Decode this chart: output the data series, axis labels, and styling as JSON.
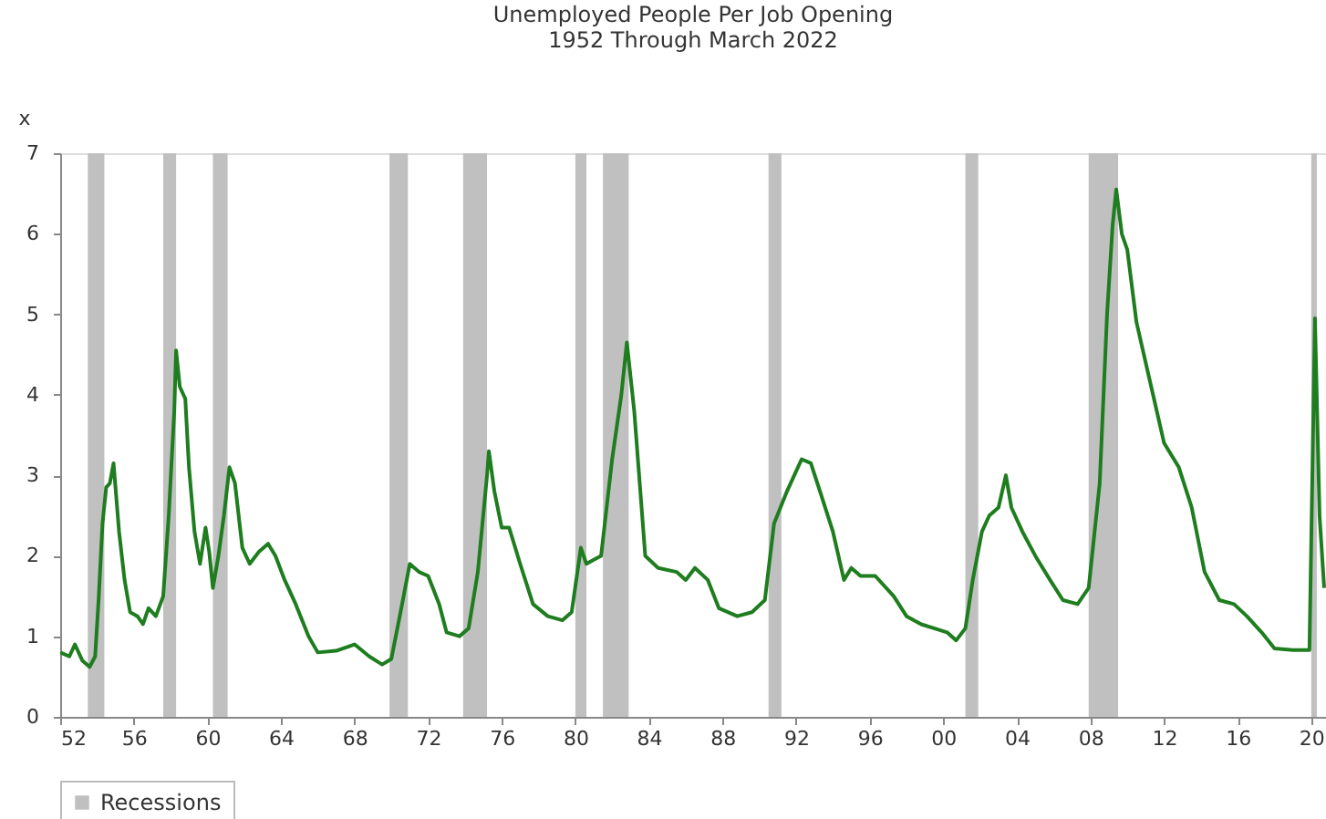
{
  "chart_data": {
    "type": "line",
    "title": [
      "Unemployed People Per Job Opening",
      "1952 Through March 2022"
    ],
    "ylabel": "x",
    "xlim": [
      1952,
      2020.8
    ],
    "xticks": [
      {
        "value": 1952,
        "label": "52"
      },
      {
        "value": 1956,
        "label": "56"
      },
      {
        "value": 1960,
        "label": "60"
      },
      {
        "value": 1964,
        "label": "64"
      },
      {
        "value": 1968,
        "label": "68"
      },
      {
        "value": 1972,
        "label": "72"
      },
      {
        "value": 1976,
        "label": "76"
      },
      {
        "value": 1980,
        "label": "80"
      },
      {
        "value": 1984,
        "label": "84"
      },
      {
        "value": 1988,
        "label": "88"
      },
      {
        "value": 1992,
        "label": "92"
      },
      {
        "value": 1996,
        "label": "96"
      },
      {
        "value": 2000,
        "label": "00"
      },
      {
        "value": 2004,
        "label": "04"
      },
      {
        "value": 2008,
        "label": "08"
      },
      {
        "value": 2012,
        "label": "12"
      },
      {
        "value": 2016,
        "label": "16"
      },
      {
        "value": 2020,
        "label": "20"
      }
    ],
    "ylim": [
      0,
      7
    ],
    "yticks": [
      0,
      1,
      2,
      3,
      4,
      5,
      6,
      7
    ],
    "grid": false,
    "legend": "bottom",
    "bands": [
      {
        "axis": "x",
        "from": 1953.5,
        "to": 1954.4,
        "label": "Recessions",
        "color": "#c0c0c0"
      },
      {
        "axis": "x",
        "from": 1957.6,
        "to": 1958.3,
        "color": "#c0c0c0"
      },
      {
        "axis": "x",
        "from": 1960.3,
        "to": 1961.1,
        "color": "#c0c0c0"
      },
      {
        "axis": "x",
        "from": 1969.9,
        "to": 1970.9,
        "color": "#c0c0c0"
      },
      {
        "axis": "x",
        "from": 1973.9,
        "to": 1975.2,
        "color": "#c0c0c0"
      },
      {
        "axis": "x",
        "from": 1980.0,
        "to": 1980.6,
        "color": "#c0c0c0"
      },
      {
        "axis": "x",
        "from": 1981.5,
        "to": 1982.9,
        "color": "#c0c0c0"
      },
      {
        "axis": "x",
        "from": 1990.5,
        "to": 1991.2,
        "color": "#c0c0c0"
      },
      {
        "axis": "x",
        "from": 2001.2,
        "to": 2001.9,
        "color": "#c0c0c0"
      },
      {
        "axis": "x",
        "from": 2007.9,
        "to": 2009.5,
        "color": "#c0c0c0"
      },
      {
        "axis": "x",
        "from": 2020.0,
        "to": 2020.3,
        "color": "#c0c0c0"
      }
    ],
    "series": [
      {
        "color": "#1e7d1e",
        "x": [
          1952.0,
          1952.5,
          1952.8,
          1953.2,
          1953.6,
          1953.9,
          1954.1,
          1954.3,
          1954.5,
          1954.7,
          1954.9,
          1955.2,
          1955.5,
          1955.8,
          1956.2,
          1956.5,
          1956.8,
          1957.2,
          1957.6,
          1957.9,
          1958.2,
          1958.3,
          1958.5,
          1958.8,
          1959.0,
          1959.3,
          1959.6,
          1959.9,
          1960.1,
          1960.3,
          1960.6,
          1960.9,
          1961.2,
          1961.5,
          1961.9,
          1962.3,
          1962.8,
          1963.3,
          1963.7,
          1964.2,
          1964.8,
          1965.5,
          1966.0,
          1967.0,
          1968.0,
          1968.8,
          1969.5,
          1970.0,
          1970.5,
          1971.0,
          1971.5,
          1972.0,
          1972.6,
          1973.0,
          1973.7,
          1974.2,
          1974.7,
          1975.2,
          1975.3,
          1975.6,
          1976.0,
          1976.4,
          1977.0,
          1977.7,
          1978.5,
          1979.3,
          1979.8,
          1980.3,
          1980.6,
          1981.0,
          1981.4,
          1982.0,
          1982.5,
          1982.8,
          1983.2,
          1983.8,
          1984.5,
          1985.5,
          1986.0,
          1986.5,
          1987.2,
          1987.8,
          1988.8,
          1989.6,
          1990.3,
          1990.8,
          1991.5,
          1992.3,
          1992.8,
          1993.3,
          1994.0,
          1994.6,
          1995.0,
          1995.5,
          1996.3,
          1997.3,
          1998.0,
          1998.8,
          1999.5,
          2000.2,
          2000.7,
          2001.2,
          2001.6,
          2002.1,
          2002.5,
          2003.0,
          2003.4,
          2003.7,
          2004.3,
          2005.0,
          2005.8,
          2006.5,
          2007.3,
          2007.9,
          2008.5,
          2008.9,
          2009.2,
          2009.4,
          2009.7,
          2010.0,
          2010.5,
          2011.2,
          2012.0,
          2012.8,
          2013.5,
          2014.2,
          2015.0,
          2015.8,
          2016.5,
          2017.3,
          2018.0,
          2019.0,
          2019.9,
          2020.2,
          2020.45,
          2020.7
        ],
        "values": [
          0.8,
          0.75,
          0.9,
          0.7,
          0.62,
          0.75,
          1.5,
          2.4,
          2.85,
          2.9,
          3.15,
          2.3,
          1.7,
          1.3,
          1.25,
          1.15,
          1.35,
          1.25,
          1.5,
          2.5,
          3.8,
          4.55,
          4.1,
          3.95,
          3.1,
          2.3,
          1.9,
          2.35,
          2.05,
          1.6,
          2.0,
          2.5,
          3.1,
          2.9,
          2.1,
          1.9,
          2.05,
          2.15,
          2.0,
          1.7,
          1.4,
          1.0,
          0.8,
          0.82,
          0.9,
          0.75,
          0.65,
          0.72,
          1.3,
          1.9,
          1.8,
          1.75,
          1.4,
          1.05,
          1.0,
          1.1,
          1.8,
          3.0,
          3.3,
          2.8,
          2.35,
          2.35,
          1.9,
          1.4,
          1.25,
          1.2,
          1.3,
          2.1,
          1.9,
          1.95,
          2.0,
          3.2,
          4.0,
          4.65,
          3.8,
          2.0,
          1.85,
          1.8,
          1.7,
          1.85,
          1.7,
          1.35,
          1.25,
          1.3,
          1.45,
          2.4,
          2.8,
          3.2,
          3.15,
          2.8,
          2.3,
          1.7,
          1.85,
          1.75,
          1.75,
          1.5,
          1.25,
          1.15,
          1.1,
          1.05,
          0.95,
          1.1,
          1.7,
          2.3,
          2.5,
          2.6,
          3.0,
          2.6,
          2.3,
          2.0,
          1.7,
          1.45,
          1.4,
          1.6,
          2.9,
          5.0,
          6.1,
          6.55,
          6.0,
          5.8,
          4.9,
          4.2,
          3.4,
          3.1,
          2.6,
          1.8,
          1.45,
          1.4,
          1.25,
          1.05,
          0.85,
          0.83,
          0.83,
          4.95,
          2.5,
          1.6
        ]
      }
    ]
  }
}
